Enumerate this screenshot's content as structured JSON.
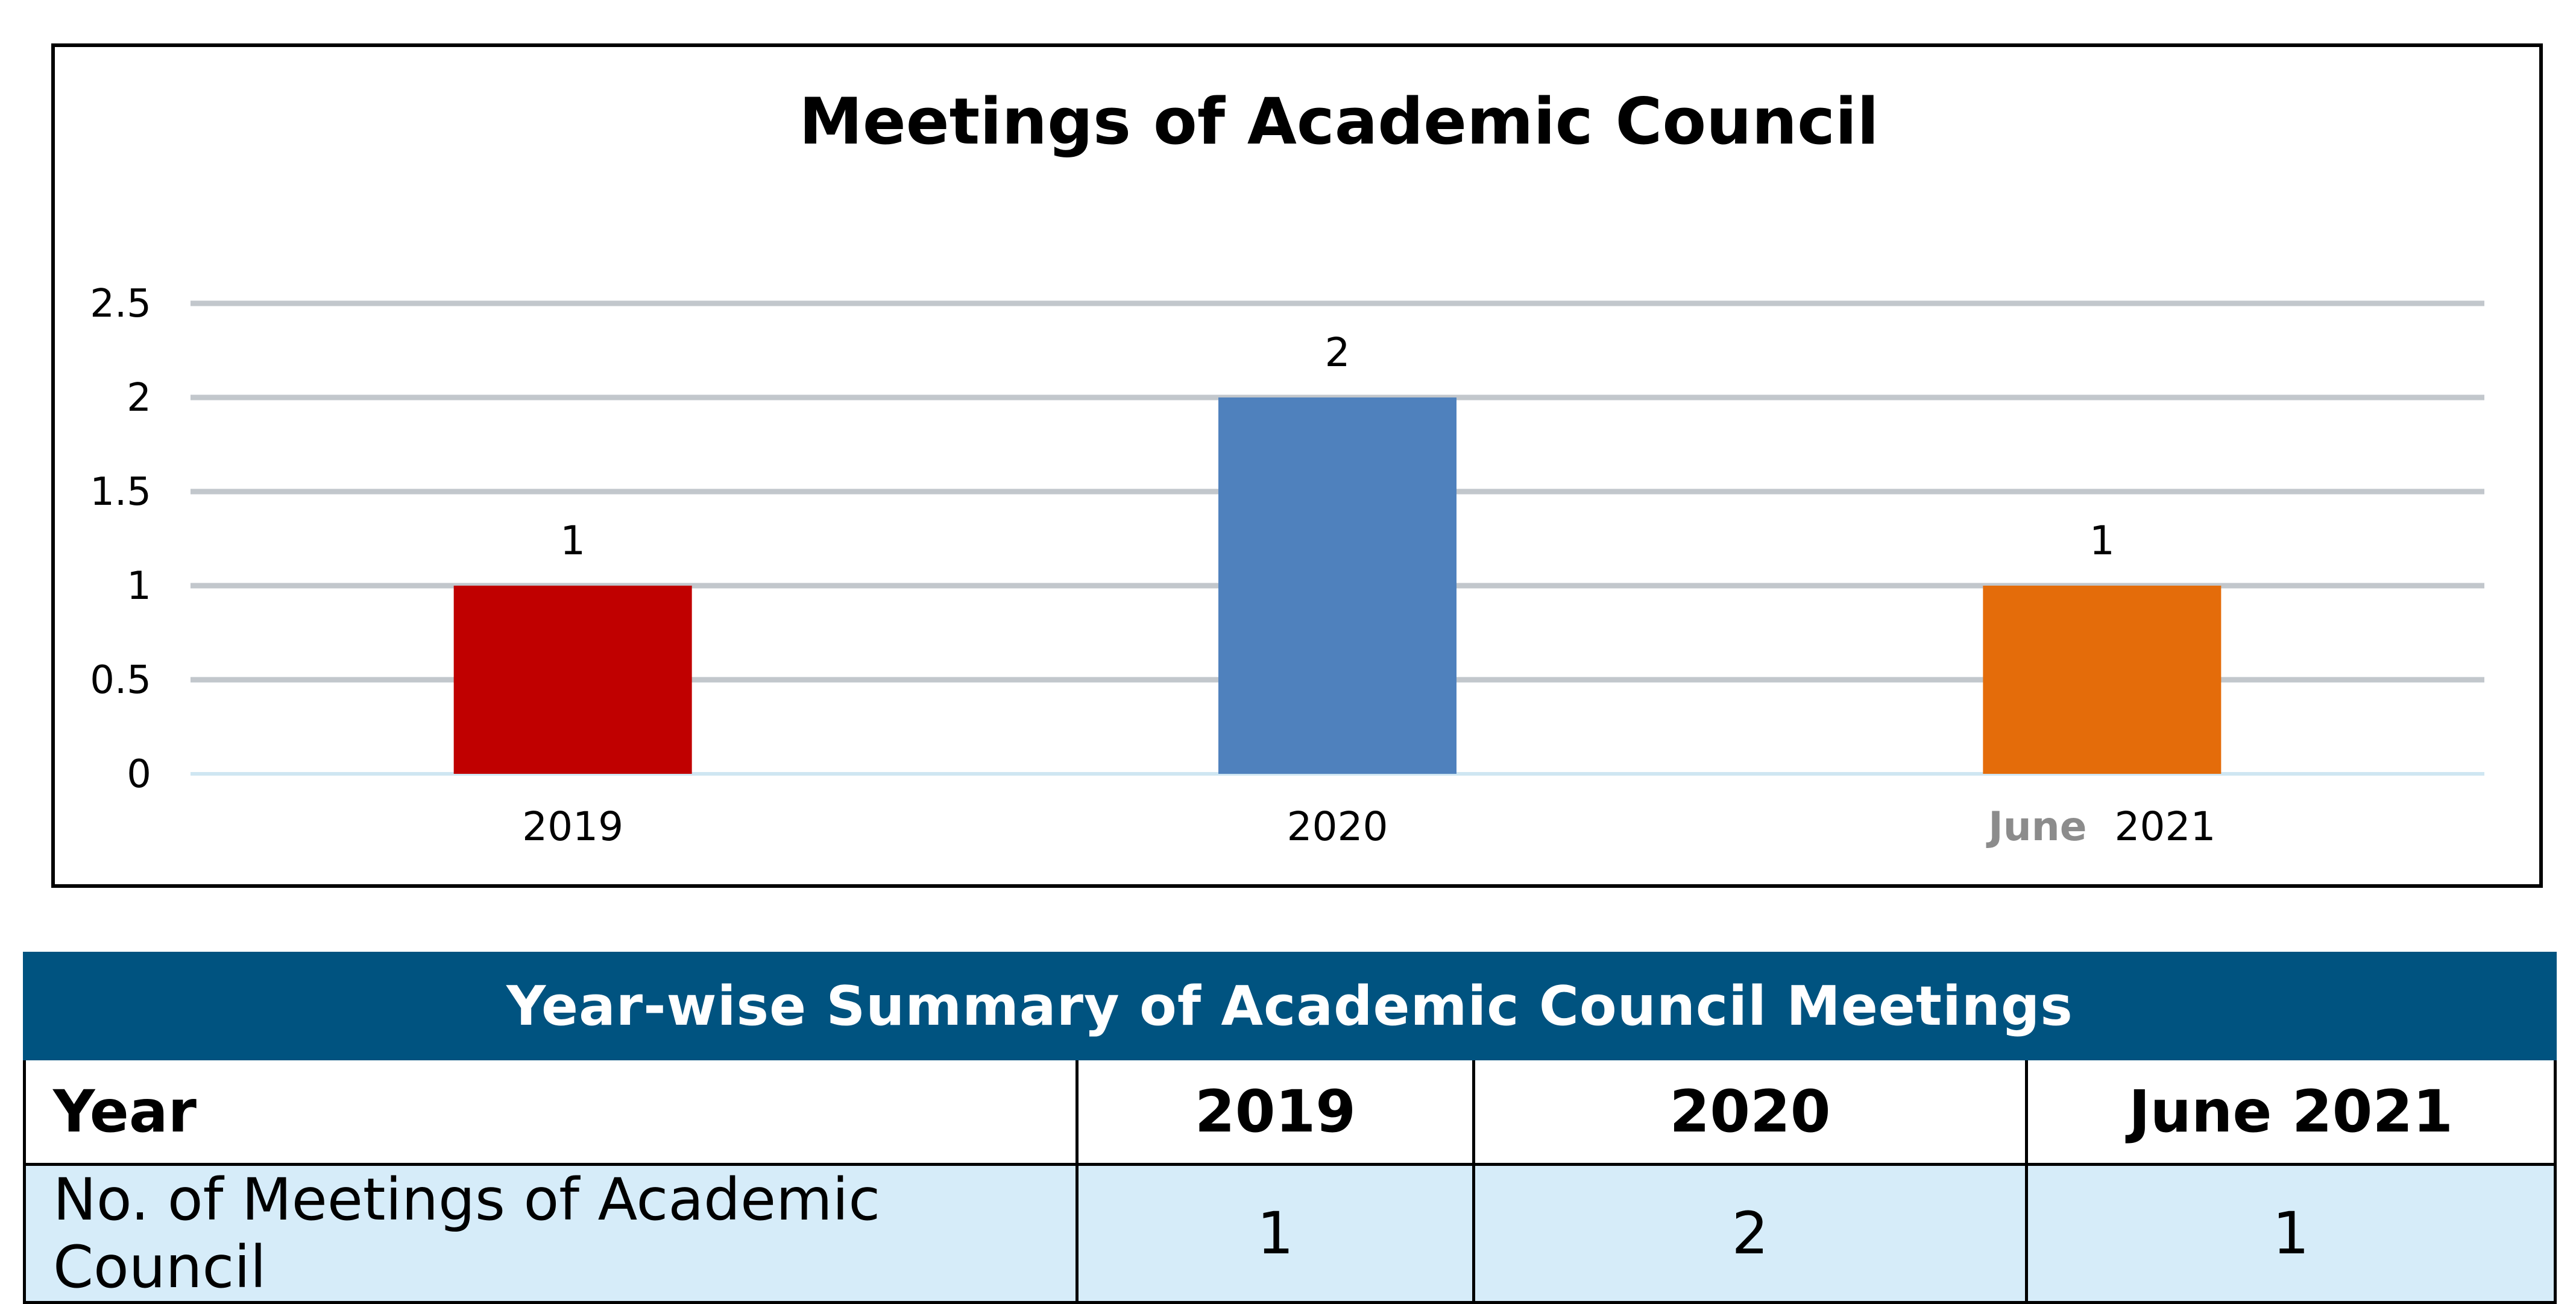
{
  "chart_data": {
    "type": "bar",
    "title": "Meetings of Academic Council",
    "categories": [
      {
        "prefix": "",
        "label": "2019"
      },
      {
        "prefix": "",
        "label": "2020"
      },
      {
        "prefix": "June",
        "label": "2021"
      }
    ],
    "values": [
      1,
      2,
      1
    ],
    "data_labels": [
      "1",
      "2",
      "1"
    ],
    "bar_colors": [
      "#c00000",
      "#4f81bd",
      "#e46c0a"
    ],
    "y_ticks": [
      "0",
      "0.5",
      "1",
      "1.5",
      "2",
      "2.5"
    ],
    "ylim": [
      0,
      2.5
    ],
    "grid": true,
    "legend": "none",
    "xlabel": "",
    "ylabel": ""
  },
  "summary_table": {
    "caption": "Year-wise Summary of Academic Council Meetings",
    "header_label": "Year",
    "years": [
      "2019",
      "2020",
      "June 2021"
    ],
    "row_label": "No. of Meetings of Academic Council",
    "counts": [
      "1",
      "2",
      "1"
    ],
    "header_color": "#005380",
    "row_color": "#d6ecf9"
  }
}
